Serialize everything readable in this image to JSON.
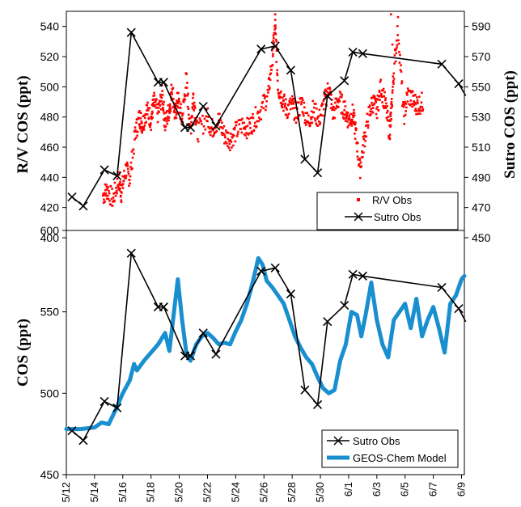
{
  "chart_data": [
    {
      "type": "scatter",
      "ylabel": "R/V COS (ppt)",
      "y2label": "Sutro COS (ppt)",
      "xlim": [
        12,
        40.2
      ],
      "ylim": [
        400,
        550
      ],
      "y2lim": [
        450,
        600
      ],
      "yticks": [
        "400",
        "420",
        "440",
        "460",
        "480",
        "500",
        "520",
        "540"
      ],
      "y2ticks": [
        "450",
        "470",
        "490",
        "510",
        "530",
        "550",
        "570",
        "590"
      ],
      "legend": {
        "placement": "bottom-right",
        "entries": [
          "R/V Obs",
          "Sutro Obs"
        ]
      },
      "series": [
        {
          "name": "R/V Obs",
          "axis": "left",
          "color": "#ff0000",
          "style": "dense-points",
          "x": [
            14.6,
            14.9,
            15.3,
            15.7,
            15.9,
            16.2,
            16.5,
            16.9,
            17.2,
            17.4,
            17.7,
            18.0,
            18.2,
            18.5,
            18.8,
            19.0,
            19.3,
            19.5,
            19.7,
            19.9,
            20.2,
            20.5,
            20.8,
            21.0,
            21.3,
            22.0,
            22.3,
            22.8,
            23.2,
            23.6,
            24.0,
            24.5,
            24.9,
            25.3,
            25.8,
            26.3,
            26.6,
            26.8,
            27.0,
            27.3,
            27.6,
            28.0,
            28.3,
            28.7,
            29.1,
            29.5,
            29.9,
            30.3,
            30.6,
            30.9,
            31.3,
            31.7,
            32.0,
            32.3,
            32.5,
            32.8,
            33.1,
            33.4,
            33.7,
            34.0,
            34.3,
            34.6,
            34.9,
            35.0,
            35.2,
            35.5,
            35.9,
            36.2,
            36.6,
            36.9,
            37.3
          ],
          "y": [
            428,
            432,
            425,
            438,
            430,
            445,
            440,
            470,
            480,
            475,
            485,
            478,
            490,
            482,
            495,
            475,
            485,
            500,
            480,
            492,
            478,
            505,
            470,
            495,
            470,
            480,
            472,
            478,
            468,
            465,
            470,
            475,
            472,
            478,
            485,
            495,
            520,
            540,
            500,
            492,
            485,
            488,
            482,
            490,
            476,
            485,
            478,
            490,
            500,
            482,
            492,
            485,
            478,
            482,
            470,
            445,
            465,
            480,
            490,
            485,
            500,
            488,
            470,
            480,
            510,
            540,
            480,
            495,
            490,
            488,
            490
          ]
        },
        {
          "name": "Sutro Obs",
          "axis": "right",
          "color": "#000000",
          "style": "line-x-markers",
          "x": [
            12.4,
            13.2,
            14.7,
            15.6,
            16.6,
            18.5,
            18.9,
            20.4,
            20.8,
            21.7,
            22.6,
            25.8,
            26.8,
            27.9,
            28.9,
            29.8,
            30.5,
            31.7,
            32.3,
            33.0,
            38.6,
            39.8,
            40.3
          ],
          "y": [
            477,
            471,
            495,
            491,
            586,
            553,
            553,
            523,
            523,
            537,
            524,
            575,
            577,
            561,
            502,
            493,
            544,
            554,
            573,
            572,
            565,
            552,
            544
          ]
        }
      ]
    },
    {
      "type": "line",
      "ylabel": "COS (ppt)",
      "xlim": [
        12,
        40.2
      ],
      "ylim": [
        450,
        600
      ],
      "yticks": [
        "450",
        "500",
        "550",
        "600"
      ],
      "categories": [
        "5/12",
        "5/14",
        "5/16",
        "5/18",
        "5/20",
        "5/22",
        "5/24",
        "5/26",
        "5/28",
        "5/30",
        "6/1",
        "6/3",
        "6/5",
        "6/7",
        "6/9"
      ],
      "legend": {
        "placement": "bottom-right",
        "entries": [
          "Sutro Obs",
          "GEOS-Chem Model"
        ]
      },
      "series": [
        {
          "name": "Sutro Obs",
          "color": "#000000",
          "style": "line-x-markers",
          "x": [
            12.4,
            13.2,
            14.7,
            15.6,
            16.6,
            18.5,
            18.9,
            20.4,
            20.8,
            21.7,
            22.6,
            25.8,
            26.8,
            27.9,
            28.9,
            29.8,
            30.5,
            31.7,
            32.3,
            33.0,
            38.6,
            39.8,
            40.3
          ],
          "y": [
            477,
            471,
            495,
            491,
            586,
            553,
            553,
            523,
            523,
            537,
            524,
            575,
            577,
            561,
            502,
            493,
            544,
            554,
            573,
            572,
            565,
            552,
            544
          ]
        },
        {
          "name": "GEOS-Chem Model",
          "color": "#1a8fd0",
          "style": "thick-line",
          "x": [
            12.0,
            13.0,
            14.0,
            14.5,
            15.0,
            15.5,
            16.0,
            16.5,
            16.8,
            17.0,
            17.5,
            18.0,
            18.5,
            19.0,
            19.3,
            19.6,
            19.9,
            20.2,
            20.5,
            20.8,
            21.2,
            21.6,
            22.0,
            22.4,
            22.8,
            23.2,
            23.6,
            24.0,
            24.4,
            24.8,
            25.2,
            25.6,
            25.9,
            26.2,
            26.6,
            27.0,
            27.4,
            27.8,
            28.2,
            28.6,
            29.0,
            29.4,
            29.8,
            30.2,
            30.6,
            31.0,
            31.4,
            31.8,
            32.2,
            32.6,
            32.9,
            33.2,
            33.6,
            34.0,
            34.4,
            34.8,
            35.2,
            35.6,
            36.0,
            36.4,
            36.8,
            37.2,
            37.6,
            38.0,
            38.4,
            38.8,
            39.2,
            39.6,
            40.0,
            40.2
          ],
          "y": [
            478,
            478,
            479,
            482,
            481,
            490,
            500,
            508,
            518,
            514,
            520,
            525,
            530,
            537,
            526,
            548,
            570,
            545,
            525,
            520,
            530,
            535,
            537,
            534,
            530,
            531,
            530,
            538,
            545,
            555,
            568,
            583,
            579,
            569,
            565,
            560,
            555,
            545,
            535,
            528,
            522,
            518,
            510,
            503,
            500,
            502,
            520,
            530,
            550,
            548,
            535,
            548,
            568,
            545,
            530,
            522,
            545,
            550,
            555,
            540,
            558,
            535,
            545,
            553,
            540,
            525,
            555,
            560,
            570,
            572
          ]
        }
      ]
    }
  ]
}
